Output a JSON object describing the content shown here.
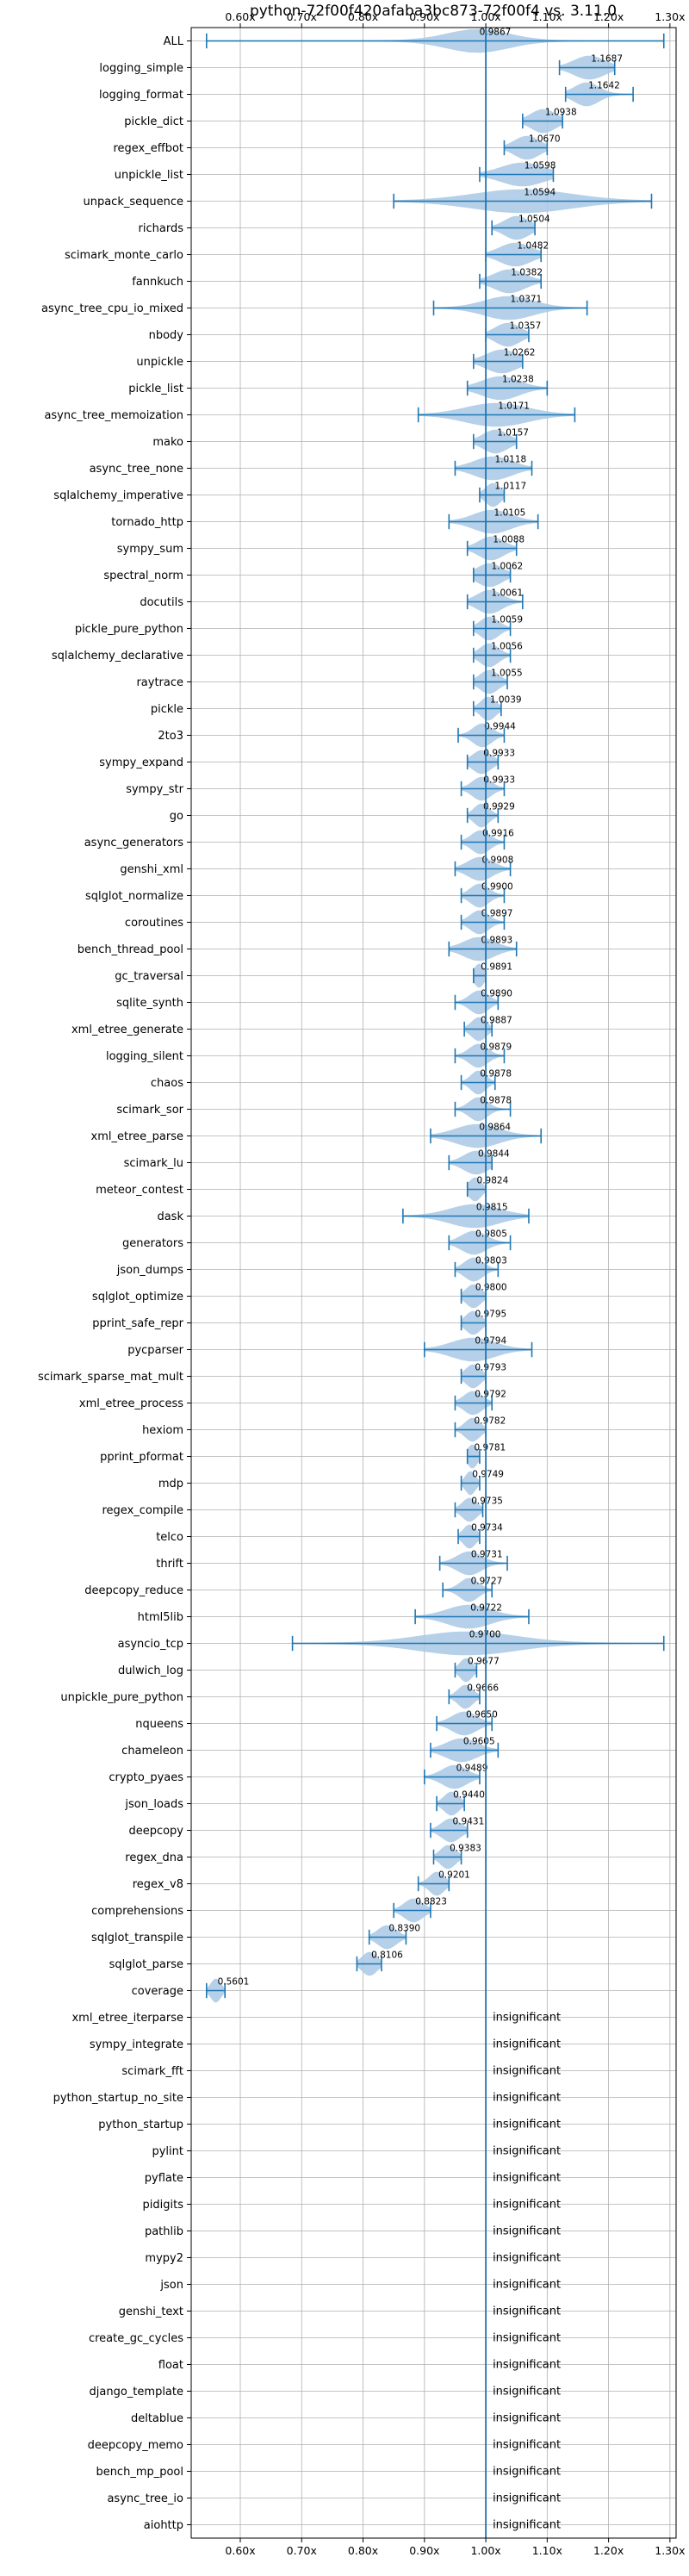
{
  "chart_data": {
    "type": "violin",
    "title": "python-72f00f420afaba3bc873-72f00f4 vs. 3.11.0",
    "xlim": [
      0.52,
      1.31
    ],
    "x_ticks": [
      {
        "value": 0.6,
        "label": "0.60x"
      },
      {
        "value": 0.7,
        "label": "0.70x"
      },
      {
        "value": 0.8,
        "label": "0.80x"
      },
      {
        "value": 0.9,
        "label": "0.90x"
      },
      {
        "value": 1.0,
        "label": "1.00x"
      },
      {
        "value": 1.1,
        "label": "1.10x"
      },
      {
        "value": 1.2,
        "label": "1.20x"
      },
      {
        "value": 1.3,
        "label": "1.30x"
      }
    ],
    "reference_line": 1.0,
    "grid": true,
    "colors": {
      "violin": "#a8c8e4",
      "line": "#1f77b4",
      "grid": "#b0b0b0",
      "frame": "#000000"
    },
    "insignificant_label": "insignificant",
    "benchmarks": [
      {
        "name": "ALL",
        "label": "0.9867",
        "value": 0.9867,
        "min": 0.545,
        "max": 1.29,
        "spread": 0.05
      },
      {
        "name": "logging_simple",
        "label": "1.1687",
        "value": 1.1687,
        "min": 1.12,
        "max": 1.21,
        "spread": 0.025
      },
      {
        "name": "logging_format",
        "label": "1.1642",
        "value": 1.1642,
        "min": 1.13,
        "max": 1.24,
        "spread": 0.02
      },
      {
        "name": "pickle_dict",
        "label": "1.0938",
        "value": 1.0938,
        "min": 1.06,
        "max": 1.125,
        "spread": 0.02
      },
      {
        "name": "regex_effbot",
        "label": "1.0670",
        "value": 1.067,
        "min": 1.03,
        "max": 1.1,
        "spread": 0.02
      },
      {
        "name": "unpickle_list",
        "label": "1.0598",
        "value": 1.0598,
        "min": 0.99,
        "max": 1.11,
        "spread": 0.035
      },
      {
        "name": "unpack_sequence",
        "label": "1.0594",
        "value": 1.0594,
        "min": 0.85,
        "max": 1.27,
        "spread": 0.08
      },
      {
        "name": "richards",
        "label": "1.0504",
        "value": 1.0504,
        "min": 1.01,
        "max": 1.08,
        "spread": 0.02
      },
      {
        "name": "scimark_monte_carlo",
        "label": "1.0482",
        "value": 1.0482,
        "min": 1.0,
        "max": 1.09,
        "spread": 0.025
      },
      {
        "name": "fannkuch",
        "label": "1.0382",
        "value": 1.0382,
        "min": 0.99,
        "max": 1.09,
        "spread": 0.025
      },
      {
        "name": "async_tree_cpu_io_mixed",
        "label": "1.0371",
        "value": 1.0371,
        "min": 0.915,
        "max": 1.165,
        "spread": 0.04
      },
      {
        "name": "nbody",
        "label": "1.0357",
        "value": 1.0357,
        "min": 1.0,
        "max": 1.07,
        "spread": 0.02
      },
      {
        "name": "unpickle",
        "label": "1.0262",
        "value": 1.0262,
        "min": 0.98,
        "max": 1.06,
        "spread": 0.025
      },
      {
        "name": "pickle_list",
        "label": "1.0238",
        "value": 1.0238,
        "min": 0.97,
        "max": 1.1,
        "spread": 0.03
      },
      {
        "name": "async_tree_memoization",
        "label": "1.0171",
        "value": 1.0171,
        "min": 0.89,
        "max": 1.145,
        "spread": 0.05
      },
      {
        "name": "mako",
        "label": "1.0157",
        "value": 1.0157,
        "min": 0.98,
        "max": 1.05,
        "spread": 0.02
      },
      {
        "name": "async_tree_none",
        "label": "1.0118",
        "value": 1.0118,
        "min": 0.95,
        "max": 1.075,
        "spread": 0.03
      },
      {
        "name": "sqlalchemy_imperative",
        "label": "1.0117",
        "value": 1.0117,
        "min": 0.99,
        "max": 1.03,
        "spread": 0.012
      },
      {
        "name": "tornado_http",
        "label": "1.0105",
        "value": 1.0105,
        "min": 0.94,
        "max": 1.085,
        "spread": 0.03
      },
      {
        "name": "sympy_sum",
        "label": "1.0088",
        "value": 1.0088,
        "min": 0.97,
        "max": 1.05,
        "spread": 0.02
      },
      {
        "name": "spectral_norm",
        "label": "1.0062",
        "value": 1.0062,
        "min": 0.98,
        "max": 1.04,
        "spread": 0.02
      },
      {
        "name": "docutils",
        "label": "1.0061",
        "value": 1.0061,
        "min": 0.97,
        "max": 1.06,
        "spread": 0.02
      },
      {
        "name": "pickle_pure_python",
        "label": "1.0059",
        "value": 1.0059,
        "min": 0.98,
        "max": 1.04,
        "spread": 0.015
      },
      {
        "name": "sqlalchemy_declarative",
        "label": "1.0056",
        "value": 1.0056,
        "min": 0.98,
        "max": 1.04,
        "spread": 0.015
      },
      {
        "name": "raytrace",
        "label": "1.0055",
        "value": 1.0055,
        "min": 0.98,
        "max": 1.035,
        "spread": 0.015
      },
      {
        "name": "pickle",
        "label": "1.0039",
        "value": 1.0039,
        "min": 0.98,
        "max": 1.025,
        "spread": 0.012
      },
      {
        "name": "2to3",
        "label": "0.9944",
        "value": 0.9944,
        "min": 0.955,
        "max": 1.03,
        "spread": 0.015
      },
      {
        "name": "sympy_expand",
        "label": "0.9933",
        "value": 0.9933,
        "min": 0.97,
        "max": 1.02,
        "spread": 0.015
      },
      {
        "name": "sympy_str",
        "label": "0.9933",
        "value": 0.9933,
        "min": 0.96,
        "max": 1.03,
        "spread": 0.015
      },
      {
        "name": "go",
        "label": "0.9929",
        "value": 0.9929,
        "min": 0.97,
        "max": 1.02,
        "spread": 0.012
      },
      {
        "name": "async_generators",
        "label": "0.9916",
        "value": 0.9916,
        "min": 0.96,
        "max": 1.03,
        "spread": 0.015
      },
      {
        "name": "genshi_xml",
        "label": "0.9908",
        "value": 0.9908,
        "min": 0.95,
        "max": 1.04,
        "spread": 0.02
      },
      {
        "name": "sqlglot_normalize",
        "label": "0.9900",
        "value": 0.99,
        "min": 0.96,
        "max": 1.03,
        "spread": 0.015
      },
      {
        "name": "coroutines",
        "label": "0.9897",
        "value": 0.9897,
        "min": 0.96,
        "max": 1.03,
        "spread": 0.015
      },
      {
        "name": "bench_thread_pool",
        "label": "0.9893",
        "value": 0.9893,
        "min": 0.94,
        "max": 1.05,
        "spread": 0.025
      },
      {
        "name": "gc_traversal",
        "label": "0.9891",
        "value": 0.9891,
        "min": 0.98,
        "max": 1.0,
        "spread": 0.008
      },
      {
        "name": "sqlite_synth",
        "label": "0.9890",
        "value": 0.989,
        "min": 0.95,
        "max": 1.02,
        "spread": 0.015
      },
      {
        "name": "xml_etree_generate",
        "label": "0.9887",
        "value": 0.9887,
        "min": 0.965,
        "max": 1.01,
        "spread": 0.012
      },
      {
        "name": "logging_silent",
        "label": "0.9879",
        "value": 0.9879,
        "min": 0.95,
        "max": 1.03,
        "spread": 0.015
      },
      {
        "name": "chaos",
        "label": "0.9878",
        "value": 0.9878,
        "min": 0.96,
        "max": 1.015,
        "spread": 0.012
      },
      {
        "name": "scimark_sor",
        "label": "0.9878",
        "value": 0.9878,
        "min": 0.95,
        "max": 1.04,
        "spread": 0.015
      },
      {
        "name": "xml_etree_parse",
        "label": "0.9864",
        "value": 0.9864,
        "min": 0.91,
        "max": 1.09,
        "spread": 0.035
      },
      {
        "name": "scimark_lu",
        "label": "0.9844",
        "value": 0.9844,
        "min": 0.94,
        "max": 1.01,
        "spread": 0.02
      },
      {
        "name": "meteor_contest",
        "label": "0.9824",
        "value": 0.9824,
        "min": 0.97,
        "max": 1.0,
        "spread": 0.01
      },
      {
        "name": "dask",
        "label": "0.9815",
        "value": 0.9815,
        "min": 0.865,
        "max": 1.07,
        "spread": 0.04
      },
      {
        "name": "generators",
        "label": "0.9805",
        "value": 0.9805,
        "min": 0.94,
        "max": 1.04,
        "spread": 0.02
      },
      {
        "name": "json_dumps",
        "label": "0.9803",
        "value": 0.9803,
        "min": 0.95,
        "max": 1.02,
        "spread": 0.015
      },
      {
        "name": "sqlglot_optimize",
        "label": "0.9800",
        "value": 0.98,
        "min": 0.96,
        "max": 1.0,
        "spread": 0.012
      },
      {
        "name": "pprint_safe_repr",
        "label": "0.9795",
        "value": 0.9795,
        "min": 0.96,
        "max": 1.0,
        "spread": 0.012
      },
      {
        "name": "pycparser",
        "label": "0.9794",
        "value": 0.9794,
        "min": 0.9,
        "max": 1.075,
        "spread": 0.035
      },
      {
        "name": "scimark_sparse_mat_mult",
        "label": "0.9793",
        "value": 0.9793,
        "min": 0.96,
        "max": 1.0,
        "spread": 0.012
      },
      {
        "name": "xml_etree_process",
        "label": "0.9792",
        "value": 0.9792,
        "min": 0.95,
        "max": 1.01,
        "spread": 0.015
      },
      {
        "name": "hexiom",
        "label": "0.9782",
        "value": 0.9782,
        "min": 0.95,
        "max": 1.0,
        "spread": 0.012
      },
      {
        "name": "pprint_pformat",
        "label": "0.9781",
        "value": 0.9781,
        "min": 0.97,
        "max": 0.99,
        "spread": 0.008
      },
      {
        "name": "mdp",
        "label": "0.9749",
        "value": 0.9749,
        "min": 0.96,
        "max": 0.99,
        "spread": 0.008
      },
      {
        "name": "regex_compile",
        "label": "0.9735",
        "value": 0.9735,
        "min": 0.95,
        "max": 0.995,
        "spread": 0.012
      },
      {
        "name": "telco",
        "label": "0.9734",
        "value": 0.9734,
        "min": 0.955,
        "max": 0.99,
        "spread": 0.01
      },
      {
        "name": "thrift",
        "label": "0.9731",
        "value": 0.9731,
        "min": 0.925,
        "max": 1.035,
        "spread": 0.02
      },
      {
        "name": "deepcopy_reduce",
        "label": "0.9727",
        "value": 0.9727,
        "min": 0.93,
        "max": 1.01,
        "spread": 0.015
      },
      {
        "name": "html5lib",
        "label": "0.9722",
        "value": 0.9722,
        "min": 0.885,
        "max": 1.07,
        "spread": 0.035
      },
      {
        "name": "asyncio_tcp",
        "label": "0.9700",
        "value": 0.97,
        "min": 0.685,
        "max": 1.29,
        "spread": 0.08
      },
      {
        "name": "dulwich_log",
        "label": "0.9677",
        "value": 0.9677,
        "min": 0.95,
        "max": 0.985,
        "spread": 0.01
      },
      {
        "name": "unpickle_pure_python",
        "label": "0.9666",
        "value": 0.9666,
        "min": 0.94,
        "max": 0.99,
        "spread": 0.012
      },
      {
        "name": "nqueens",
        "label": "0.9650",
        "value": 0.965,
        "min": 0.92,
        "max": 1.01,
        "spread": 0.02
      },
      {
        "name": "chameleon",
        "label": "0.9605",
        "value": 0.9605,
        "min": 0.91,
        "max": 1.02,
        "spread": 0.025
      },
      {
        "name": "crypto_pyaes",
        "label": "0.9489",
        "value": 0.9489,
        "min": 0.9,
        "max": 0.99,
        "spread": 0.02
      },
      {
        "name": "json_loads",
        "label": "0.9440",
        "value": 0.944,
        "min": 0.92,
        "max": 0.965,
        "spread": 0.012
      },
      {
        "name": "deepcopy",
        "label": "0.9431",
        "value": 0.9431,
        "min": 0.91,
        "max": 0.97,
        "spread": 0.015
      },
      {
        "name": "regex_dna",
        "label": "0.9383",
        "value": 0.9383,
        "min": 0.915,
        "max": 0.96,
        "spread": 0.012
      },
      {
        "name": "regex_v8",
        "label": "0.9201",
        "value": 0.9201,
        "min": 0.89,
        "max": 0.94,
        "spread": 0.012
      },
      {
        "name": "comprehensions",
        "label": "0.8823",
        "value": 0.8823,
        "min": 0.85,
        "max": 0.91,
        "spread": 0.015
      },
      {
        "name": "sqlglot_transpile",
        "label": "0.8390",
        "value": 0.839,
        "min": 0.81,
        "max": 0.87,
        "spread": 0.015
      },
      {
        "name": "sqlglot_parse",
        "label": "0.8106",
        "value": 0.8106,
        "min": 0.79,
        "max": 0.83,
        "spread": 0.012
      },
      {
        "name": "coverage",
        "label": "0.5601",
        "value": 0.5601,
        "min": 0.545,
        "max": 0.575,
        "spread": 0.008
      },
      {
        "name": "xml_etree_iterparse",
        "label": "insignificant",
        "value": null
      },
      {
        "name": "sympy_integrate",
        "label": "insignificant",
        "value": null
      },
      {
        "name": "scimark_fft",
        "label": "insignificant",
        "value": null
      },
      {
        "name": "python_startup_no_site",
        "label": "insignificant",
        "value": null
      },
      {
        "name": "python_startup",
        "label": "insignificant",
        "value": null
      },
      {
        "name": "pylint",
        "label": "insignificant",
        "value": null
      },
      {
        "name": "pyflate",
        "label": "insignificant",
        "value": null
      },
      {
        "name": "pidigits",
        "label": "insignificant",
        "value": null
      },
      {
        "name": "pathlib",
        "label": "insignificant",
        "value": null
      },
      {
        "name": "mypy2",
        "label": "insignificant",
        "value": null
      },
      {
        "name": "json",
        "label": "insignificant",
        "value": null
      },
      {
        "name": "genshi_text",
        "label": "insignificant",
        "value": null
      },
      {
        "name": "create_gc_cycles",
        "label": "insignificant",
        "value": null
      },
      {
        "name": "float",
        "label": "insignificant",
        "value": null
      },
      {
        "name": "django_template",
        "label": "insignificant",
        "value": null
      },
      {
        "name": "deltablue",
        "label": "insignificant",
        "value": null
      },
      {
        "name": "deepcopy_memo",
        "label": "insignificant",
        "value": null
      },
      {
        "name": "bench_mp_pool",
        "label": "insignificant",
        "value": null
      },
      {
        "name": "async_tree_io",
        "label": "insignificant",
        "value": null
      },
      {
        "name": "aiohttp",
        "label": "insignificant",
        "value": null
      }
    ]
  }
}
